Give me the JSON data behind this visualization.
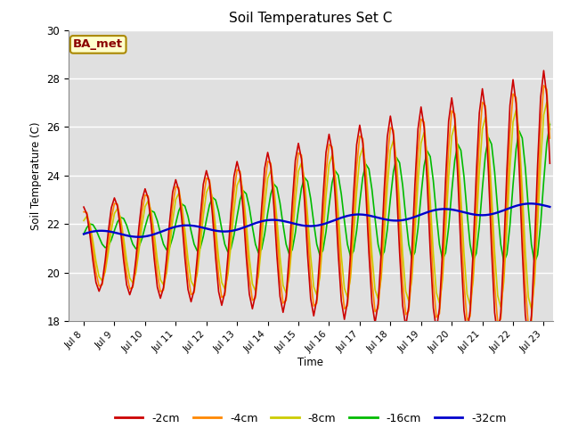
{
  "title": "Soil Temperatures Set C",
  "xlabel": "Time",
  "ylabel": "Soil Temperature (C)",
  "ylim": [
    18,
    30
  ],
  "xlim_days": [
    7.5,
    23.3
  ],
  "xtick_days": [
    8,
    9,
    10,
    11,
    12,
    13,
    14,
    15,
    16,
    17,
    18,
    19,
    20,
    21,
    22,
    23
  ],
  "xtick_labels": [
    "Jul 8",
    "Jul 9",
    "Jul 10",
    "Jul 11",
    "Jul 12",
    "Jul 13",
    "Jul 14",
    "Jul 15",
    "Jul 16",
    "Jul 17",
    "Jul 18",
    "Jul 19",
    "Jul 20",
    "Jul 21",
    "Jul 22",
    "Jul 23"
  ],
  "yticks": [
    18,
    20,
    22,
    24,
    26,
    28,
    30
  ],
  "colors": {
    "-2cm": "#cc0000",
    "-4cm": "#ff8800",
    "-8cm": "#cccc00",
    "-16cm": "#00bb00",
    "-32cm": "#0000cc"
  },
  "legend_label": "BA_met",
  "legend_facecolor": "#ffffcc",
  "legend_edgecolor": "#aa8800",
  "fig_facecolor": "#ffffff",
  "axes_facecolor": "#e0e0e0",
  "grid_color": "#ffffff",
  "linewidth": 1.2,
  "trend_start": 21.0,
  "trend_slope": 0.115,
  "period": 1.0,
  "amp2_base": 1.7,
  "amp2_grow": 0.26,
  "amp4_base": 1.55,
  "amp4_grow": 0.24,
  "amp8_base": 1.3,
  "amp8_grow": 0.2,
  "amp16_base": 0.45,
  "amp16_grow": 0.16,
  "lag4": 0.04,
  "lag8": 0.08,
  "lag16": 0.22,
  "phase": 1.57
}
